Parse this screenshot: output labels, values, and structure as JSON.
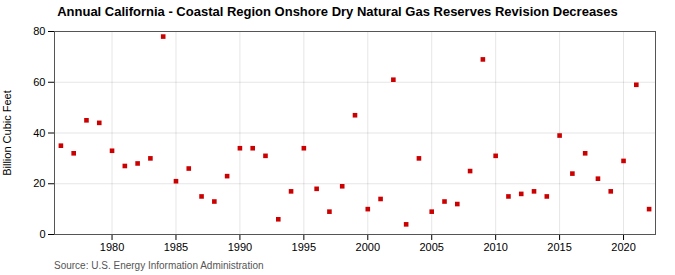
{
  "chart_data": {
    "type": "scatter",
    "title": "Annual California - Coastal Region Onshore Dry Natural Gas Reserves Revision Decreases",
    "ylabel": "Billion Cubic Feet",
    "caption": "Source: U.S. Energy Information Administration",
    "color": "#cc0000",
    "marker": "square",
    "grid": true,
    "xlim": [
      1975.5,
      2022.5
    ],
    "xticks": [
      1980,
      1985,
      1990,
      1995,
      2000,
      2005,
      2010,
      2015,
      2020
    ],
    "ylim": [
      0,
      80
    ],
    "yticks": [
      0,
      20,
      40,
      60,
      80
    ],
    "x": [
      1976,
      1977,
      1978,
      1979,
      1980,
      1981,
      1982,
      1983,
      1984,
      1985,
      1986,
      1987,
      1988,
      1989,
      1990,
      1991,
      1992,
      1993,
      1994,
      1995,
      1996,
      1997,
      1998,
      1999,
      2000,
      2001,
      2002,
      2003,
      2004,
      2005,
      2006,
      2007,
      2008,
      2009,
      2010,
      2011,
      2012,
      2013,
      2014,
      2015,
      2016,
      2017,
      2018,
      2019,
      2020,
      2021,
      2022
    ],
    "values": [
      35,
      32,
      45,
      44,
      33,
      27,
      28,
      30,
      78,
      21,
      26,
      15,
      13,
      23,
      34,
      34,
      31,
      6,
      17,
      34,
      18,
      9,
      19,
      47,
      10,
      14,
      61,
      4,
      30,
      9,
      13,
      12,
      25,
      69,
      31,
      15,
      16,
      17,
      15,
      39,
      24,
      32,
      22,
      17,
      29,
      59,
      10
    ]
  }
}
